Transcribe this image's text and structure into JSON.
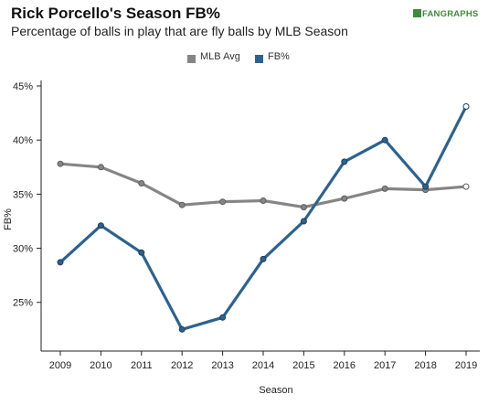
{
  "header": {
    "title": "Rick Porcello's Season FB%",
    "subtitle": "Percentage of balls in play that are fly balls by MLB Season",
    "brand": "FANGRAPHS"
  },
  "colors": {
    "mlb_avg": "#858585",
    "fb": "#2e628d",
    "axis": "#222222",
    "brand": "#3e8a3c"
  },
  "chart_data": {
    "type": "line",
    "title": "Rick Porcello's Season FB%",
    "subtitle": "Percentage of balls in play that are fly balls by MLB Season",
    "xlabel": "Season",
    "ylabel": "FB%",
    "x": [
      2009,
      2010,
      2011,
      2012,
      2013,
      2014,
      2015,
      2016,
      2017,
      2018,
      2019
    ],
    "x_tick_labels": [
      "2009",
      "2010",
      "2011",
      "2012",
      "2013",
      "2014",
      "2015",
      "2016",
      "2017",
      "2018",
      "2019"
    ],
    "ylim": [
      20.5,
      45
    ],
    "y_ticks": [
      25,
      30,
      35,
      40,
      45
    ],
    "y_tick_labels": [
      "25%",
      "30%",
      "35%",
      "40%",
      "45%"
    ],
    "grid": false,
    "legend_position": "top-center",
    "series": [
      {
        "name": "MLB Avg",
        "color": "#858585",
        "values": [
          37.8,
          37.5,
          36.0,
          34.0,
          34.3,
          34.4,
          33.8,
          34.6,
          35.5,
          35.4,
          35.7
        ]
      },
      {
        "name": "FB%",
        "color": "#2e628d",
        "values": [
          28.7,
          32.1,
          29.6,
          22.5,
          23.6,
          29.0,
          32.5,
          38.0,
          40.0,
          35.7,
          43.1
        ]
      }
    ]
  }
}
